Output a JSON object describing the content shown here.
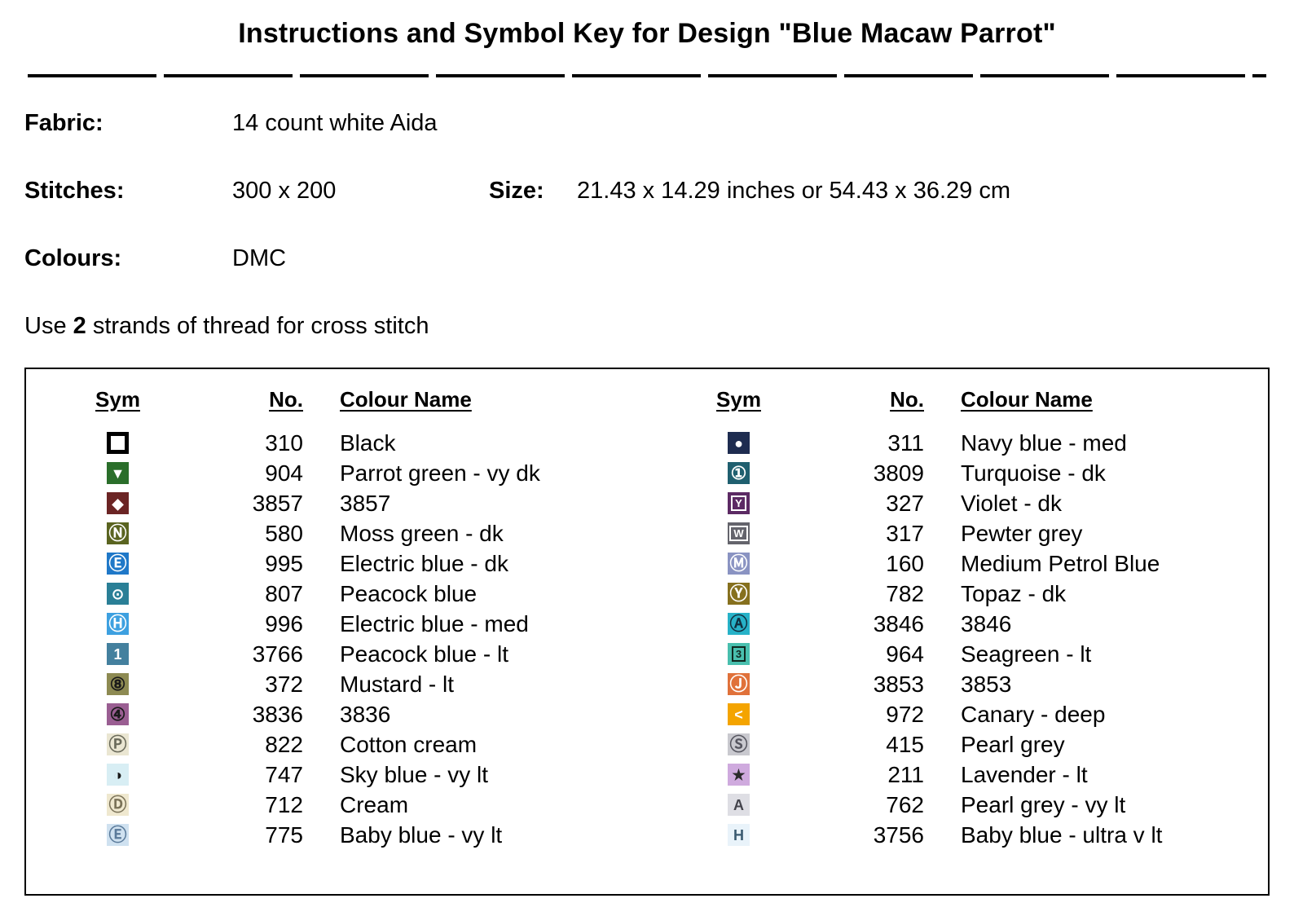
{
  "title": "Instructions and Symbol Key for Design \"Blue Macaw Parrot\"",
  "info": {
    "fabric_label": "Fabric:",
    "fabric_value": "14 count white Aida",
    "stitches_label": "Stitches:",
    "stitches_value": "300 x 200",
    "size_label": "Size:",
    "size_value": "21.43 x 14.29 inches or 54.43 x 36.29 cm",
    "colours_label": "Colours:",
    "colours_value": "DMC",
    "strands_prefix": "Use ",
    "strands_count": "2",
    "strands_suffix": " strands of thread for cross stitch"
  },
  "table": {
    "headers": {
      "sym": "Sym",
      "no": "No.",
      "name": "Colour Name"
    },
    "left_rows": [
      {
        "no": "310",
        "name": "Black",
        "sym": {
          "glyph": "",
          "bg": "#ffffff",
          "fg": "#000000",
          "kind": "outline"
        }
      },
      {
        "no": "904",
        "name": "Parrot green -  vy dk",
        "sym": {
          "glyph": "▼",
          "bg": "#2a6e2a",
          "fg": "#ffffff",
          "kind": "plain"
        }
      },
      {
        "no": "3857",
        "name": "3857",
        "sym": {
          "glyph": "◆",
          "bg": "#6b2424",
          "fg": "#ffffff",
          "kind": "plain"
        }
      },
      {
        "no": "580",
        "name": "Moss green -  dk",
        "sym": {
          "glyph": "Ⓝ",
          "bg": "#5a6420",
          "fg": "#ffffff",
          "kind": "circled"
        }
      },
      {
        "no": "995",
        "name": "Electric blue -  dk",
        "sym": {
          "glyph": "Ⓔ",
          "bg": "#1f78c8",
          "fg": "#ffffff",
          "kind": "circled"
        }
      },
      {
        "no": "807",
        "name": "Peacock blue",
        "sym": {
          "glyph": "⊙",
          "bg": "#2a7f96",
          "fg": "#ffffff",
          "kind": "plain"
        }
      },
      {
        "no": "996",
        "name": "Electric blue -  med",
        "sym": {
          "glyph": "Ⓗ",
          "bg": "#3da0e0",
          "fg": "#ffffff",
          "kind": "circled"
        }
      },
      {
        "no": "3766",
        "name": "Peacock blue -  lt",
        "sym": {
          "glyph": "1",
          "bg": "#44809e",
          "fg": "#ffffff",
          "kind": "plain"
        }
      },
      {
        "no": "372",
        "name": "Mustard -  lt",
        "sym": {
          "glyph": "⑧",
          "bg": "#8d8a52",
          "fg": "#1a1a1a",
          "kind": "circled"
        }
      },
      {
        "no": "3836",
        "name": "3836",
        "sym": {
          "glyph": "④",
          "bg": "#9a5e92",
          "fg": "#1a1a1a",
          "kind": "circled"
        }
      },
      {
        "no": "822",
        "name": "Cotton cream",
        "sym": {
          "glyph": "Ⓟ",
          "bg": "#eae6d2",
          "fg": "#6a6a5a",
          "kind": "circled"
        }
      },
      {
        "no": "747",
        "name": "Sky blue -  vy lt",
        "sym": {
          "glyph": "◑",
          "bg": "#d8eef4",
          "fg": "#1a1a1a",
          "kind": "plain"
        }
      },
      {
        "no": "712",
        "name": "Cream",
        "sym": {
          "glyph": "Ⓓ",
          "bg": "#efe8cf",
          "fg": "#7a7258",
          "kind": "circled"
        }
      },
      {
        "no": "775",
        "name": "Baby blue -  vy lt",
        "sym": {
          "glyph": "Ⓔ",
          "bg": "#cfe1f0",
          "fg": "#5a7a9a",
          "kind": "circled"
        }
      }
    ],
    "right_rows": [
      {
        "no": "311",
        "name": "Navy blue -  med",
        "sym": {
          "glyph": "●",
          "bg": "#1e2c50",
          "fg": "#ffffff",
          "kind": "plain"
        }
      },
      {
        "no": "3809",
        "name": "Turquoise -  dk",
        "sym": {
          "glyph": "①",
          "bg": "#1f5f6f",
          "fg": "#ffffff",
          "kind": "circled"
        }
      },
      {
        "no": "327",
        "name": "Violet -  dk",
        "sym": {
          "glyph": "Y",
          "bg": "#5c2a64",
          "fg": "#ffffff",
          "kind": "boxed"
        }
      },
      {
        "no": "317",
        "name": "Pewter grey",
        "sym": {
          "glyph": "W",
          "bg": "#64646c",
          "fg": "#ffffff",
          "kind": "boxed"
        }
      },
      {
        "no": "160",
        "name": "Medium Petrol Blue",
        "sym": {
          "glyph": "Ⓜ",
          "bg": "#8a93c2",
          "fg": "#ffffff",
          "kind": "circled"
        }
      },
      {
        "no": "782",
        "name": "Topaz -  dk",
        "sym": {
          "glyph": "Ⓨ",
          "bg": "#86701e",
          "fg": "#ffffff",
          "kind": "circled"
        }
      },
      {
        "no": "3846",
        "name": "3846",
        "sym": {
          "glyph": "Ⓐ",
          "bg": "#27b2c8",
          "fg": "#103040",
          "kind": "circled"
        }
      },
      {
        "no": "964",
        "name": "Seagreen -  lt",
        "sym": {
          "glyph": "3",
          "bg": "#49bfae",
          "fg": "#102820",
          "kind": "boxed"
        }
      },
      {
        "no": "3853",
        "name": "3853",
        "sym": {
          "glyph": "Ⓙ",
          "bg": "#e0713a",
          "fg": "#ffffff",
          "kind": "circled"
        }
      },
      {
        "no": "972",
        "name": "Canary -  deep",
        "sym": {
          "glyph": "<",
          "bg": "#f4a400",
          "fg": "#ffffff",
          "kind": "plain"
        }
      },
      {
        "no": "415",
        "name": "Pearl grey",
        "sym": {
          "glyph": "Ⓢ",
          "bg": "#c9c9cf",
          "fg": "#55555f",
          "kind": "circled"
        }
      },
      {
        "no": "211",
        "name": "Lavender -  lt",
        "sym": {
          "glyph": "★",
          "bg": "#cfaade",
          "fg": "#2a2a2a",
          "kind": "plain"
        }
      },
      {
        "no": "762",
        "name": "Pearl grey -  vy lt",
        "sym": {
          "glyph": "A",
          "bg": "#dedee4",
          "fg": "#44444c",
          "kind": "plain"
        }
      },
      {
        "no": "3756",
        "name": "Baby blue -  ultra v lt",
        "sym": {
          "glyph": "H",
          "bg": "#e9f3fa",
          "fg": "#3a5a70",
          "kind": "plain"
        }
      }
    ]
  }
}
